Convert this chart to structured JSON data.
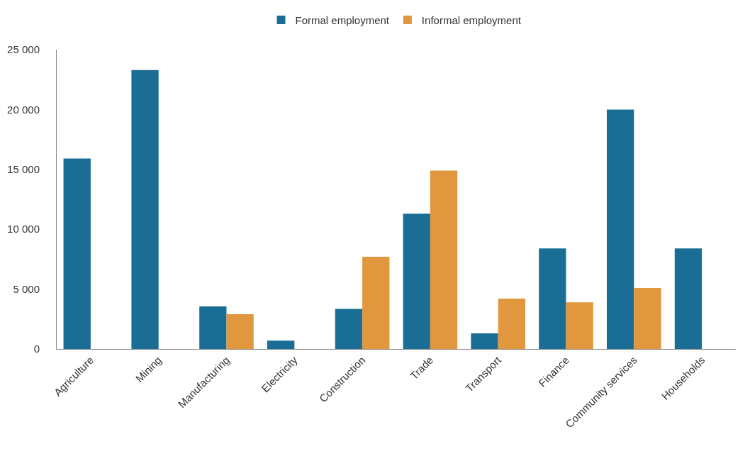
{
  "chart_data": {
    "type": "bar",
    "categories": [
      "Agriculture",
      "Mining",
      "Manufacturing",
      "Electricity",
      "Construction",
      "Trade",
      "Transport",
      "Finance",
      "Community services",
      "Households"
    ],
    "series": [
      {
        "name": "Formal employment",
        "color": "#1a6e96",
        "values": [
          15900,
          23300,
          3550,
          700,
          3340,
          11300,
          1300,
          8400,
          20000,
          8400
        ]
      },
      {
        "name": "Informal employment",
        "color": "#e0973e",
        "values": [
          null,
          null,
          2900,
          null,
          7700,
          14900,
          4200,
          3900,
          5100,
          null
        ]
      }
    ],
    "ylim": [
      0,
      25000
    ],
    "yticks": [
      {
        "value": 0,
        "label": "0"
      },
      {
        "value": 5000,
        "label": "5 000"
      },
      {
        "value": 10000,
        "label": "10 000"
      },
      {
        "value": 15000,
        "label": "15 000"
      },
      {
        "value": 20000,
        "label": "20 000"
      },
      {
        "value": 25000,
        "label": "25 000"
      }
    ],
    "grid": false,
    "legend": "top"
  }
}
